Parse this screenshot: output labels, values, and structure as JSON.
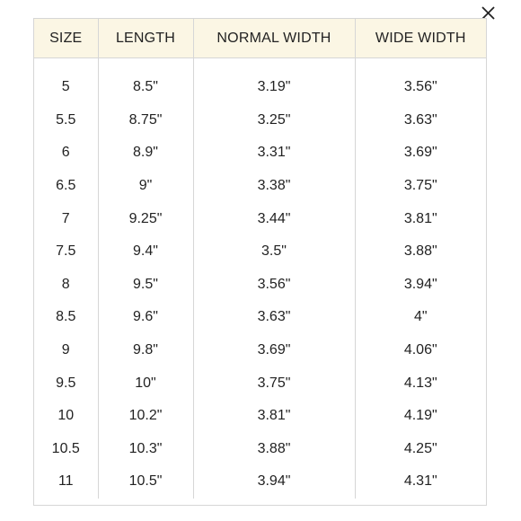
{
  "close_icon": "close-icon",
  "colors": {
    "header_bg": "#fbf6e4",
    "border": "#d6d6d6",
    "text": "#222222"
  },
  "table": {
    "headers": [
      "SIZE",
      "LENGTH",
      "NORMAL WIDTH",
      "WIDE WIDTH"
    ],
    "rows": [
      [
        "5",
        "8.5\"",
        "3.19\"",
        "3.56\""
      ],
      [
        "5.5",
        "8.75\"",
        "3.25\"",
        "3.63\""
      ],
      [
        "6",
        "8.9\"",
        "3.31\"",
        "3.69\""
      ],
      [
        "6.5",
        "9\"",
        "3.38\"",
        "3.75\""
      ],
      [
        "7",
        "9.25\"",
        "3.44\"",
        "3.81\""
      ],
      [
        "7.5",
        "9.4\"",
        "3.5\"",
        "3.88\""
      ],
      [
        "8",
        "9.5\"",
        "3.56\"",
        "3.94\""
      ],
      [
        "8.5",
        "9.6\"",
        "3.63\"",
        "4\""
      ],
      [
        "9",
        "9.8\"",
        "3.69\"",
        "4.06\""
      ],
      [
        "9.5",
        "10\"",
        "3.75\"",
        "4.13\""
      ],
      [
        "10",
        "10.2\"",
        "3.81\"",
        "4.19\""
      ],
      [
        "10.5",
        "10.3\"",
        "3.88\"",
        "4.25\""
      ],
      [
        "11",
        "10.5\"",
        "3.94\"",
        "4.31\""
      ]
    ]
  }
}
